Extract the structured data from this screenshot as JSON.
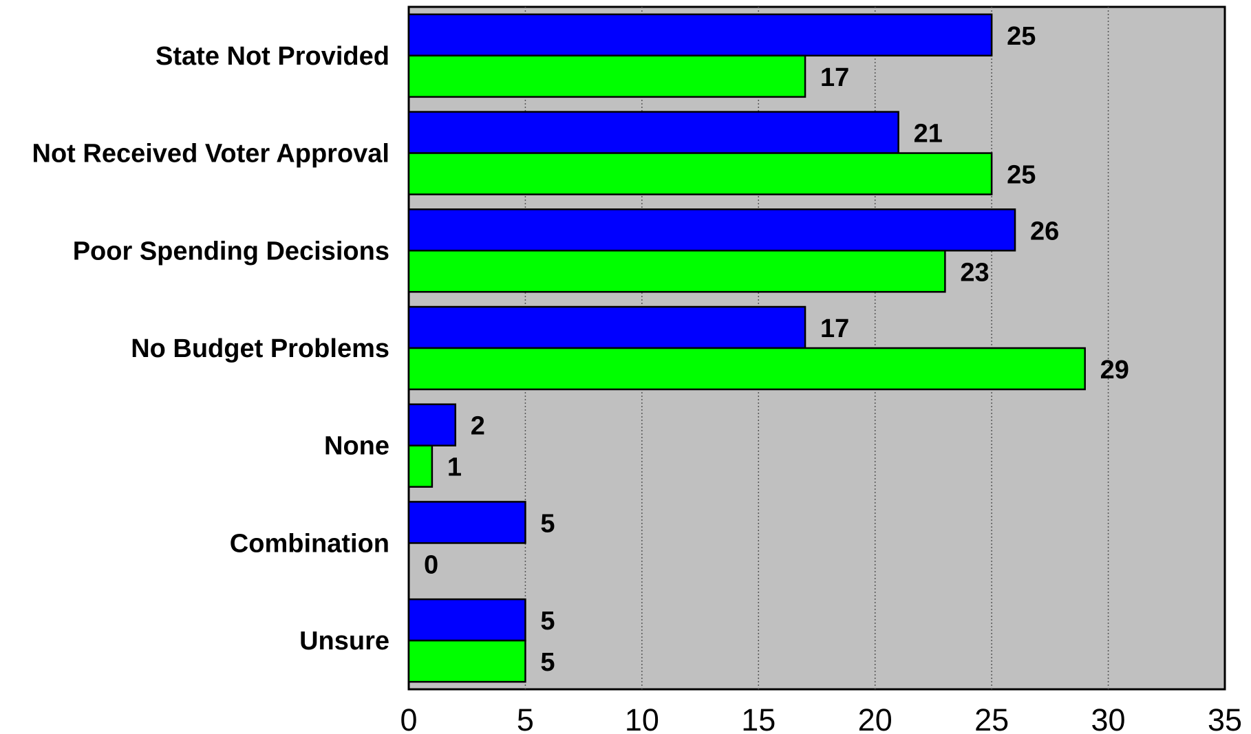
{
  "chart_data": {
    "type": "bar",
    "orientation": "horizontal",
    "categories": [
      "State Not Provided",
      "Not Received Voter Approval",
      "Poor Spending Decisions",
      "No Budget Problems",
      "None",
      "Combination",
      "Unsure"
    ],
    "series": [
      {
        "values": [
          25,
          21,
          26,
          17,
          2,
          5,
          5
        ],
        "color": "#0000ff"
      },
      {
        "values": [
          17,
          25,
          23,
          29,
          1,
          0,
          5
        ],
        "color": "#00ff00"
      }
    ],
    "xlim": [
      0,
      35
    ],
    "x_ticks": [
      "0",
      "5",
      "10",
      "15",
      "20",
      "25",
      "30",
      "35"
    ],
    "grid": "vertical dotted",
    "plot_background": "#c0c0c0",
    "legend": "none"
  }
}
